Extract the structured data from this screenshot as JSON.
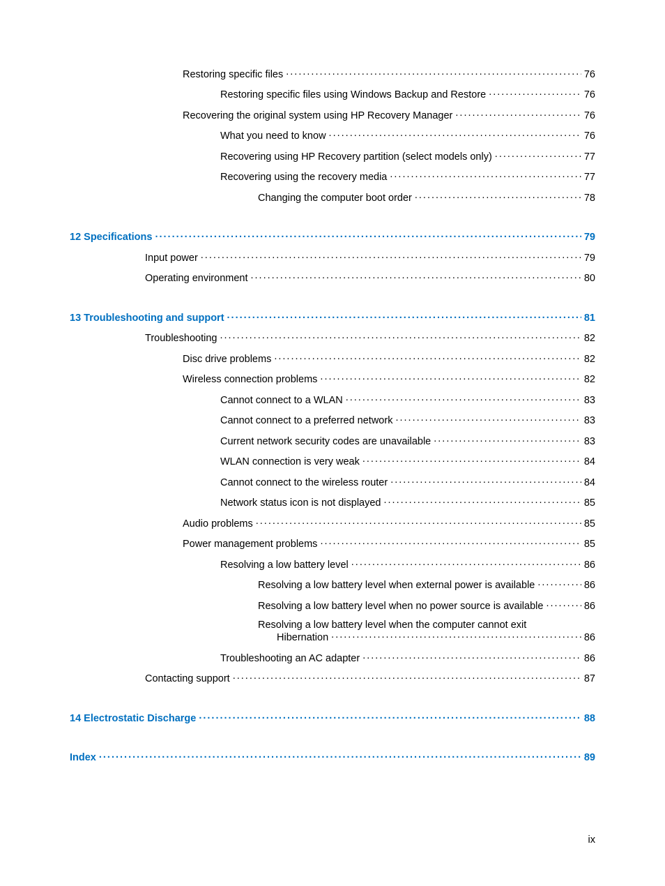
{
  "colors": {
    "link": "#0070c0",
    "text": "#000000",
    "background": "#ffffff"
  },
  "fontsize": 14.5,
  "page_number": "ix",
  "entries": [
    {
      "text": "Restoring specific files",
      "page": "76",
      "indent": 3,
      "chapter": false
    },
    {
      "text": "Restoring specific files using Windows Backup and Restore",
      "page": "76",
      "indent": 4,
      "chapter": false
    },
    {
      "text": "Recovering the original system using HP Recovery Manager",
      "page": "76",
      "indent": 3,
      "chapter": false
    },
    {
      "text": "What you need to know",
      "page": "76",
      "indent": 4,
      "chapter": false
    },
    {
      "text": "Recovering using HP Recovery partition (select models only)",
      "page": "77",
      "indent": 4,
      "chapter": false
    },
    {
      "text": "Recovering using the recovery media",
      "page": "77",
      "indent": 4,
      "chapter": false
    },
    {
      "text": "Changing the computer boot order",
      "page": "78",
      "indent": 5,
      "chapter": false
    },
    {
      "text": "12  Specifications",
      "page": "79",
      "indent": 0,
      "chapter": true,
      "gap": true
    },
    {
      "text": "Input power",
      "page": "79",
      "indent": 2,
      "chapter": false
    },
    {
      "text": "Operating environment",
      "page": "80",
      "indent": 2,
      "chapter": false
    },
    {
      "text": "13  Troubleshooting and support",
      "page": "81",
      "indent": 0,
      "chapter": true,
      "gap": true
    },
    {
      "text": "Troubleshooting",
      "page": "82",
      "indent": 2,
      "chapter": false
    },
    {
      "text": "Disc drive problems",
      "page": "82",
      "indent": 3,
      "chapter": false
    },
    {
      "text": "Wireless connection problems",
      "page": "82",
      "indent": 3,
      "chapter": false
    },
    {
      "text": "Cannot connect to a WLAN",
      "page": "83",
      "indent": 4,
      "chapter": false
    },
    {
      "text": "Cannot connect to a preferred network",
      "page": "83",
      "indent": 4,
      "chapter": false
    },
    {
      "text": "Current network security codes are unavailable",
      "page": "83",
      "indent": 4,
      "chapter": false
    },
    {
      "text": "WLAN connection is very weak",
      "page": "84",
      "indent": 4,
      "chapter": false
    },
    {
      "text": "Cannot connect to the wireless router",
      "page": "84",
      "indent": 4,
      "chapter": false
    },
    {
      "text": "Network status icon is not displayed",
      "page": "85",
      "indent": 4,
      "chapter": false
    },
    {
      "text": "Audio problems",
      "page": "85",
      "indent": 3,
      "chapter": false
    },
    {
      "text": "Power management problems",
      "page": "85",
      "indent": 3,
      "chapter": false
    },
    {
      "text": "Resolving a low battery level",
      "page": "86",
      "indent": 4,
      "chapter": false
    },
    {
      "text": "Resolving a low battery level when external power is available",
      "page": "86",
      "indent": 5,
      "chapter": false
    },
    {
      "text": "Resolving a low battery level when no power source is available",
      "page": "86",
      "indent": 5,
      "chapter": false
    },
    {
      "text": "Resolving a low battery level when the computer cannot exit",
      "page": "",
      "indent": 5,
      "chapter": false,
      "nodots": true
    },
    {
      "text": "Hibernation",
      "page": "86",
      "indent": 5,
      "chapter": false,
      "sub": true
    },
    {
      "text": "Troubleshooting an AC adapter",
      "page": "86",
      "indent": 4,
      "chapter": false
    },
    {
      "text": "Contacting support",
      "page": "87",
      "indent": 2,
      "chapter": false
    },
    {
      "text": "14  Electrostatic Discharge",
      "page": "88",
      "indent": 0,
      "chapter": true,
      "gap": true
    },
    {
      "text": "Index",
      "page": "89",
      "indent": 0,
      "chapter": true,
      "gap": true
    }
  ]
}
